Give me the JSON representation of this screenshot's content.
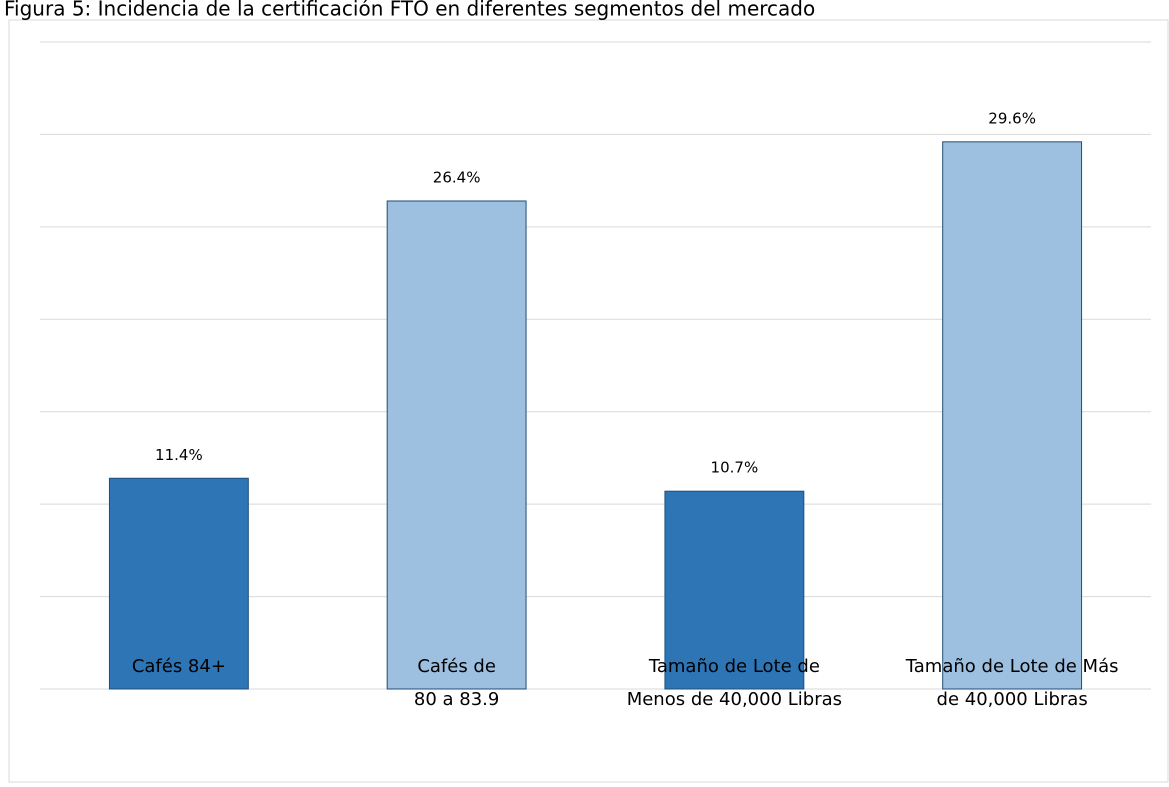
{
  "chart_data": {
    "type": "bar",
    "title": "Figura 5: Incidencia de la certificación FTO en diferentes segmentos del mercado",
    "categories": [
      [
        "Cafés 84+"
      ],
      [
        "Cafés de",
        "80 a 83.9"
      ],
      [
        "Tamaño de Lote de",
        "Menos de 40,000 Libras"
      ],
      [
        "Tamaño de Lote de Más",
        "de 40,000 Libras"
      ]
    ],
    "values": [
      11.4,
      26.4,
      10.7,
      29.6
    ],
    "value_labels": [
      "11.4%",
      "26.4%",
      "10.7%",
      "29.6%"
    ],
    "colors": [
      "#2e75b6",
      "#9dbfe0",
      "#2e75b6",
      "#9dbfe0"
    ],
    "ylim": [
      0,
      35
    ],
    "yticks": [
      0,
      5,
      10,
      15,
      20,
      25,
      30,
      35
    ],
    "grid": true
  }
}
